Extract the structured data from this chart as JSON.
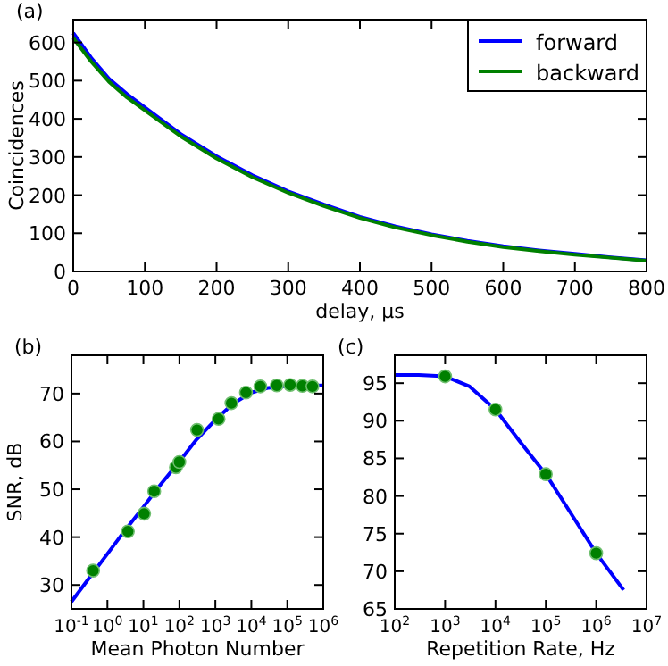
{
  "chart_data": [
    {
      "type": "line",
      "title": "(a)",
      "xlabel": "delay, μs",
      "ylabel": "Coincidences",
      "xlim": [
        0,
        800
      ],
      "ylim": [
        0,
        660
      ],
      "xticks": [
        0,
        100,
        200,
        300,
        400,
        500,
        600,
        700,
        800
      ],
      "yticks": [
        0,
        100,
        200,
        300,
        400,
        500,
        600
      ],
      "legend": "top right",
      "line_style": "solid",
      "x": [
        0,
        25,
        50,
        75,
        100,
        150,
        200,
        250,
        300,
        350,
        400,
        450,
        500,
        550,
        600,
        650,
        700,
        750,
        800
      ],
      "series": [
        {
          "name": "forward",
          "color": "#0000ff",
          "values": [
            625,
            560,
            505,
            465,
            430,
            360,
            302,
            252,
            210,
            175,
            143,
            118,
            97,
            80,
            66,
            55,
            46,
            37,
            29
          ]
        },
        {
          "name": "backward",
          "color": "#008000",
          "values": [
            612,
            550,
            497,
            456,
            422,
            354,
            296,
            247,
            206,
            171,
            140,
            115,
            95,
            78,
            64,
            53,
            44,
            36,
            28
          ]
        }
      ]
    },
    {
      "type": "line",
      "title": "(b)",
      "xlabel": "Mean Photon Number",
      "ylabel": "SNR, dB",
      "log": "x",
      "xlim": [
        0.1,
        1000000
      ],
      "ylim": [
        25,
        78
      ],
      "xticks": [
        {
          "value": 0.1,
          "label": "10$^{-1}$"
        },
        {
          "value": 1,
          "label": "10$^{0}$"
        },
        {
          "value": 10,
          "label": "10$^{1}$"
        },
        {
          "value": 100,
          "label": "10$^{2}$"
        },
        {
          "value": 1000,
          "label": "10$^{3}$"
        },
        {
          "value": 10000,
          "label": "10$^{4}$"
        },
        {
          "value": 100000,
          "label": "10$^{5}$"
        },
        {
          "value": 1000000,
          "label": "10$^{6}$"
        }
      ],
      "yticks": [
        30,
        40,
        50,
        60,
        70
      ],
      "series": [
        {
          "color": "#0000ff",
          "x": [
            0.1,
            0.3,
            1,
            3,
            10,
            30,
            100,
            300,
            1000,
            3000,
            10000,
            30000,
            100000,
            1000000
          ],
          "values": [
            26.5,
            31.3,
            36.5,
            41.3,
            46.3,
            51,
            55.8,
            60.4,
            64.5,
            67.8,
            70.2,
            71.2,
            71.6,
            71.7
          ]
        },
        {
          "type": "scatter",
          "color": "#008000",
          "marker": "circle",
          "x": [
            0.4,
            3.7,
            10.5,
            20,
            80,
            100,
            310,
            1230,
            2800,
            7100,
            17800,
            51000,
            120000,
            263000,
            500000
          ],
          "values": [
            33.0,
            41.2,
            44.9,
            49.6,
            54.6,
            55.7,
            62.4,
            64.7,
            68.0,
            70.2,
            71.5,
            71.7,
            71.8,
            71.6,
            71.5
          ]
        }
      ]
    },
    {
      "type": "line",
      "title": "(c)",
      "xlabel": "Repetition Rate, Hz",
      "log": "x",
      "xlim": [
        100,
        10000000
      ],
      "ylim": [
        65,
        98.7
      ],
      "xticks": [
        {
          "value": 100,
          "label": "10$^{2}$"
        },
        {
          "value": 1000,
          "label": "10$^{3}$"
        },
        {
          "value": 10000,
          "label": "10$^{4}$"
        },
        {
          "value": 100000,
          "label": "10$^{5}$"
        },
        {
          "value": 1000000,
          "label": "10$^{6}$"
        },
        {
          "value": 10000000,
          "label": "10$^{7}$"
        }
      ],
      "yticks": [
        65,
        70,
        75,
        80,
        85,
        90,
        95
      ],
      "series": [
        {
          "color": "#0000ff",
          "x": [
            100,
            300,
            1000,
            3000,
            10000,
            30000,
            100000,
            300000,
            1000000,
            3500000
          ],
          "values": [
            96.1,
            96.1,
            95.9,
            94.6,
            91.5,
            87.3,
            82.9,
            77.9,
            72.4,
            67.5
          ]
        },
        {
          "type": "scatter",
          "color": "#008000",
          "marker": "circle",
          "x": [
            1000,
            10000,
            100000,
            1000000
          ],
          "values": [
            95.9,
            91.5,
            82.9,
            72.4
          ]
        }
      ]
    }
  ]
}
